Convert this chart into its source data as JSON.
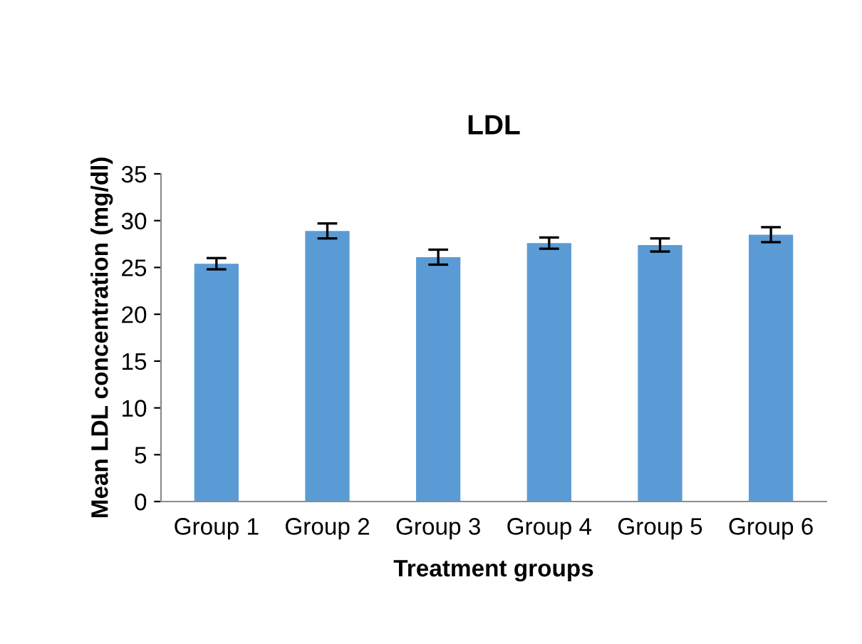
{
  "chart_data": {
    "type": "bar",
    "title": "LDL",
    "xlabel": "Treatment groups",
    "ylabel": "Mean LDL concentration (mg/dl)",
    "categories": [
      "Group 1",
      "Group 2",
      "Group 3",
      "Group 4",
      "Group 5",
      "Group 6"
    ],
    "values": [
      25.4,
      28.9,
      26.1,
      27.6,
      27.4,
      28.5
    ],
    "errors": [
      0.6,
      0.8,
      0.8,
      0.6,
      0.7,
      0.8
    ],
    "color": "#5b9bd5",
    "ylim": [
      0,
      35
    ],
    "yticks": [
      0,
      5,
      10,
      15,
      20,
      25,
      30,
      35
    ],
    "grid": false,
    "legend": false
  }
}
